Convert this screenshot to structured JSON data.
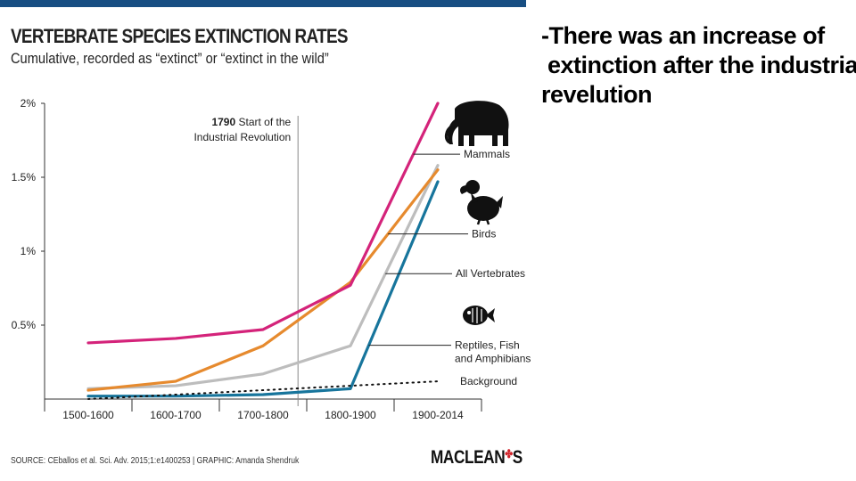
{
  "header": {
    "title": "VERTEBRATE SPECIES EXTINCTION RATES",
    "subtitle": "Cumulative, recorded as “extinct” or “extinct in the wild”"
  },
  "note": {
    "lines": [
      "-There was an increase of",
      " extinction after the industrial",
      "revelution"
    ]
  },
  "chart_data": {
    "type": "line",
    "title": "VERTEBRATE SPECIES EXTINCTION RATES",
    "subtitle": "Cumulative, recorded as “extinct” or “extinct in the wild”",
    "categories": [
      "1500-1600",
      "1600-1700",
      "1700-1800",
      "1800-1900",
      "1900-2014"
    ],
    "y_ticks": [
      {
        "value": 0.5,
        "label": "0.5%"
      },
      {
        "value": 1.0,
        "label": "1%"
      },
      {
        "value": 1.5,
        "label": "1.5%"
      },
      {
        "value": 2.0,
        "label": "2%"
      }
    ],
    "ylim": [
      0,
      2.0
    ],
    "ylabel": "",
    "xlabel": "",
    "series": [
      {
        "name": "Mammals",
        "color": "#d4237a",
        "dash": false,
        "values": [
          0.38,
          0.41,
          0.47,
          0.77,
          2.0
        ],
        "label_lines": [
          "Mammals"
        ]
      },
      {
        "name": "Birds",
        "color": "#e68a2e",
        "dash": false,
        "values": [
          0.06,
          0.12,
          0.36,
          0.79,
          1.55
        ],
        "label_lines": [
          "Birds"
        ]
      },
      {
        "name": "All Vertebrates",
        "color": "#bdbdbd",
        "dash": false,
        "values": [
          0.07,
          0.09,
          0.17,
          0.36,
          1.58
        ],
        "label_lines": [
          "All Vertebrates"
        ]
      },
      {
        "name": "Reptiles, Fish and Amphibians",
        "color": "#17759c",
        "dash": false,
        "values": [
          0.02,
          0.02,
          0.03,
          0.07,
          1.47
        ],
        "label_lines": [
          "Reptiles, Fish",
          "and Amphibians"
        ]
      },
      {
        "name": "Background",
        "color": "#111111",
        "dash": true,
        "values": [
          0.0,
          0.03,
          0.06,
          0.09,
          0.12
        ],
        "label_lines": [
          "Background"
        ]
      }
    ],
    "annotations": [
      {
        "at_year": 1790,
        "text_bold": "1790",
        "text_rest": " Start of the",
        "text_line2": "Industrial Revolution"
      }
    ],
    "grid": false,
    "legend": "right"
  },
  "footer": {
    "source": "SOURCE: CEballos et al. Sci. Adv. 2015;1:e1400253  |  GRAPHIC: Amanda Shendruk",
    "brand": "MACLEAN",
    "brand_suffix": "S",
    "brand_mark": "✤"
  },
  "icons": [
    "mammoth-icon",
    "dodo-icon",
    "fish-icon"
  ]
}
